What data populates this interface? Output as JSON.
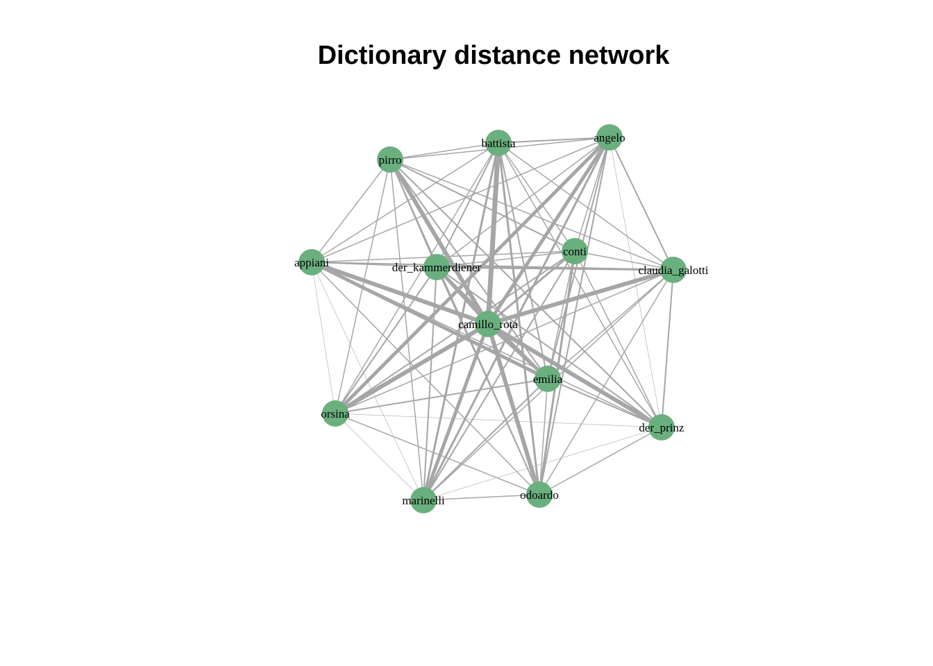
{
  "title": "Dictionary distance network",
  "colors": {
    "node": "#6aaf7e",
    "edge": "#a6a6a6",
    "label": "#000000",
    "background": "#ffffff"
  },
  "nodes": [
    {
      "id": "battista",
      "label": "battista"
    },
    {
      "id": "angelo",
      "label": "angelo"
    },
    {
      "id": "pirro",
      "label": "pirro"
    },
    {
      "id": "conti",
      "label": "conti"
    },
    {
      "id": "appiani",
      "label": "appiani"
    },
    {
      "id": "der_kammerdiener",
      "label": "der_kammerdiener"
    },
    {
      "id": "claudia_galotti",
      "label": "claudia_galotti"
    },
    {
      "id": "camillo_rota",
      "label": "camillo_rota"
    },
    {
      "id": "emilia",
      "label": "emilia"
    },
    {
      "id": "orsina",
      "label": "orsina"
    },
    {
      "id": "der_prinz",
      "label": "der_prinz"
    },
    {
      "id": "marinelli",
      "label": "marinelli"
    },
    {
      "id": "odoardo",
      "label": "odoardo"
    }
  ],
  "edges": [
    {
      "from": "camillo_rota",
      "to": "battista",
      "weight": 7
    },
    {
      "from": "camillo_rota",
      "to": "angelo",
      "weight": 5
    },
    {
      "from": "camillo_rota",
      "to": "pirro",
      "weight": 6
    },
    {
      "from": "camillo_rota",
      "to": "conti",
      "weight": 3
    },
    {
      "from": "camillo_rota",
      "to": "appiani",
      "weight": 6
    },
    {
      "from": "camillo_rota",
      "to": "der_kammerdiener",
      "weight": 5
    },
    {
      "from": "camillo_rota",
      "to": "claudia_galotti",
      "weight": 6
    },
    {
      "from": "camillo_rota",
      "to": "emilia",
      "weight": 5
    },
    {
      "from": "camillo_rota",
      "to": "orsina",
      "weight": 6
    },
    {
      "from": "camillo_rota",
      "to": "der_prinz",
      "weight": 6
    },
    {
      "from": "camillo_rota",
      "to": "marinelli",
      "weight": 5
    },
    {
      "from": "camillo_rota",
      "to": "odoardo",
      "weight": 6
    },
    {
      "from": "angelo",
      "to": "orsina",
      "weight": 5
    },
    {
      "from": "angelo",
      "to": "marinelli",
      "weight": 3
    },
    {
      "from": "angelo",
      "to": "odoardo",
      "weight": 2
    },
    {
      "from": "angelo",
      "to": "emilia",
      "weight": 2
    },
    {
      "from": "angelo",
      "to": "battista",
      "weight": 2
    },
    {
      "from": "angelo",
      "to": "pirro",
      "weight": 1.5
    },
    {
      "from": "angelo",
      "to": "appiani",
      "weight": 1.5
    },
    {
      "from": "angelo",
      "to": "der_kammerdiener",
      "weight": 1.5
    },
    {
      "from": "angelo",
      "to": "claudia_galotti",
      "weight": 2
    },
    {
      "from": "angelo",
      "to": "der_prinz",
      "weight": 0.6
    },
    {
      "from": "angelo",
      "to": "conti",
      "weight": 1.5
    },
    {
      "from": "battista",
      "to": "pirro",
      "weight": 1.5
    },
    {
      "from": "battista",
      "to": "marinelli",
      "weight": 3
    },
    {
      "from": "battista",
      "to": "odoardo",
      "weight": 3
    },
    {
      "from": "battista",
      "to": "emilia",
      "weight": 2
    },
    {
      "from": "battista",
      "to": "der_prinz",
      "weight": 1.5
    },
    {
      "from": "battista",
      "to": "claudia_galotti",
      "weight": 1.5
    },
    {
      "from": "battista",
      "to": "appiani",
      "weight": 1.5
    },
    {
      "from": "battista",
      "to": "der_kammerdiener",
      "weight": 2
    },
    {
      "from": "battista",
      "to": "orsina",
      "weight": 1.5
    },
    {
      "from": "battista",
      "to": "conti",
      "weight": 1.5
    },
    {
      "from": "pirro",
      "to": "appiani",
      "weight": 1.5
    },
    {
      "from": "pirro",
      "to": "conti",
      "weight": 2
    },
    {
      "from": "pirro",
      "to": "claudia_galotti",
      "weight": 1.5
    },
    {
      "from": "pirro",
      "to": "der_kammerdiener",
      "weight": 2
    },
    {
      "from": "pirro",
      "to": "emilia",
      "weight": 2
    },
    {
      "from": "pirro",
      "to": "der_prinz",
      "weight": 2
    },
    {
      "from": "pirro",
      "to": "orsina",
      "weight": 1.5
    },
    {
      "from": "pirro",
      "to": "marinelli",
      "weight": 1.5
    },
    {
      "from": "pirro",
      "to": "odoardo",
      "weight": 1.5
    },
    {
      "from": "conti",
      "to": "appiani",
      "weight": 1.5
    },
    {
      "from": "conti",
      "to": "der_kammerdiener",
      "weight": 1.5
    },
    {
      "from": "conti",
      "to": "claudia_galotti",
      "weight": 1.5
    },
    {
      "from": "conti",
      "to": "emilia",
      "weight": 1.5
    },
    {
      "from": "conti",
      "to": "orsina",
      "weight": 2
    },
    {
      "from": "conti",
      "to": "der_prinz",
      "weight": 1.5
    },
    {
      "from": "conti",
      "to": "marinelli",
      "weight": 2
    },
    {
      "from": "conti",
      "to": "odoardo",
      "weight": 3
    },
    {
      "from": "appiani",
      "to": "der_kammerdiener",
      "weight": 1.5
    },
    {
      "from": "appiani",
      "to": "claudia_galotti",
      "weight": 2
    },
    {
      "from": "appiani",
      "to": "emilia",
      "weight": 5
    },
    {
      "from": "appiani",
      "to": "orsina",
      "weight": 0.6
    },
    {
      "from": "appiani",
      "to": "der_prinz",
      "weight": 1.5
    },
    {
      "from": "appiani",
      "to": "marinelli",
      "weight": 0.6
    },
    {
      "from": "appiani",
      "to": "odoardo",
      "weight": 1.5
    },
    {
      "from": "der_kammerdiener",
      "to": "claudia_galotti",
      "weight": 3
    },
    {
      "from": "der_kammerdiener",
      "to": "emilia",
      "weight": 3
    },
    {
      "from": "der_kammerdiener",
      "to": "orsina",
      "weight": 2
    },
    {
      "from": "der_kammerdiener",
      "to": "der_prinz",
      "weight": 2
    },
    {
      "from": "der_kammerdiener",
      "to": "marinelli",
      "weight": 2
    },
    {
      "from": "der_kammerdiener",
      "to": "odoardo",
      "weight": 2
    },
    {
      "from": "claudia_galotti",
      "to": "emilia",
      "weight": 1.5
    },
    {
      "from": "claudia_galotti",
      "to": "orsina",
      "weight": 1.5
    },
    {
      "from": "claudia_galotti",
      "to": "der_prinz",
      "weight": 2
    },
    {
      "from": "claudia_galotti",
      "to": "marinelli",
      "weight": 1.5
    },
    {
      "from": "claudia_galotti",
      "to": "odoardo",
      "weight": 1.5
    },
    {
      "from": "emilia",
      "to": "orsina",
      "weight": 2
    },
    {
      "from": "emilia",
      "to": "der_prinz",
      "weight": 2
    },
    {
      "from": "emilia",
      "to": "marinelli",
      "weight": 2
    },
    {
      "from": "emilia",
      "to": "odoardo",
      "weight": 1.5
    },
    {
      "from": "orsina",
      "to": "der_prinz",
      "weight": 0.6
    },
    {
      "from": "orsina",
      "to": "marinelli",
      "weight": 0.6
    },
    {
      "from": "orsina",
      "to": "odoardo",
      "weight": 1.5
    },
    {
      "from": "der_prinz",
      "to": "marinelli",
      "weight": 0.6
    },
    {
      "from": "der_prinz",
      "to": "odoardo",
      "weight": 1.5
    },
    {
      "from": "marinelli",
      "to": "odoardo",
      "weight": 1.5
    }
  ]
}
